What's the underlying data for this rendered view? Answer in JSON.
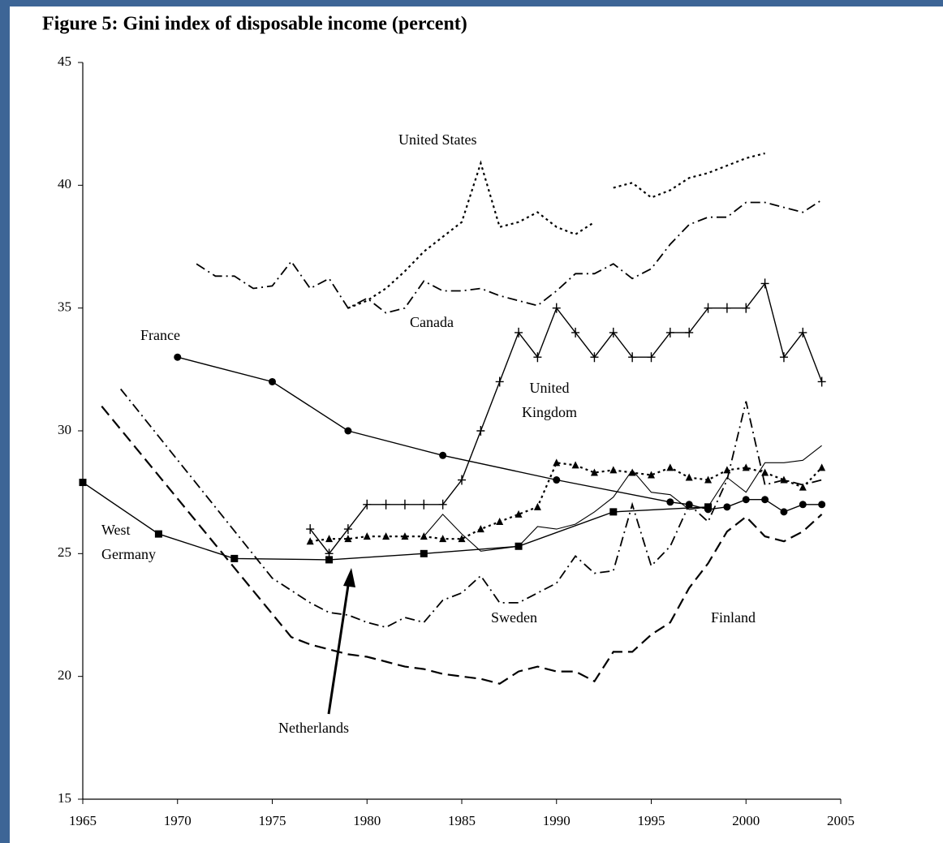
{
  "chart_data": {
    "type": "line",
    "title": "Figure 5: Gini index of disposable income (percent)",
    "xlim": [
      1965,
      2005
    ],
    "xticks": [
      1965,
      1970,
      1975,
      1980,
      1985,
      1990,
      1995,
      2000,
      2005
    ],
    "ylim": [
      15,
      45
    ],
    "yticks": [
      15,
      20,
      25,
      30,
      35,
      40,
      45
    ],
    "grid": false,
    "annotations": [
      "Netherlands"
    ],
    "series": [
      {
        "name": "United States",
        "color": "#000000",
        "dash": "dotted",
        "marker": "none",
        "x": [
          1979,
          1980,
          1981,
          1982,
          1983,
          1984,
          1985,
          1986,
          1987,
          1988,
          1989,
          1990,
          1991,
          1992,
          1992.5,
          1993,
          1994,
          1995,
          1996,
          1997,
          1998,
          1999,
          2000,
          2001
        ],
        "values": [
          35.0,
          35.3,
          35.8,
          36.5,
          37.3,
          37.9,
          38.5,
          40.9,
          38.3,
          38.5,
          38.9,
          38.3,
          38.0,
          38.5,
          null,
          39.9,
          40.1,
          39.5,
          39.8,
          40.3,
          40.5,
          40.8,
          41.1,
          41.3
        ]
      },
      {
        "name": "Canada",
        "color": "#000000",
        "dash": "dashdot",
        "marker": "none",
        "x": [
          1971,
          1972,
          1973,
          1974,
          1975,
          1976,
          1977,
          1978,
          1979,
          1980,
          1981,
          1982,
          1983,
          1984,
          1985,
          1986,
          1987,
          1988,
          1989,
          1990,
          1991,
          1992,
          1993,
          1994,
          1995,
          1996,
          1997,
          1998,
          1999,
          2000,
          2001,
          2002,
          2003,
          2004
        ],
        "values": [
          36.8,
          36.3,
          36.3,
          35.8,
          35.9,
          36.9,
          35.8,
          36.2,
          35.0,
          35.4,
          34.8,
          35.0,
          36.1,
          35.7,
          35.7,
          35.8,
          35.5,
          35.3,
          35.1,
          35.7,
          36.4,
          36.4,
          36.8,
          36.2,
          36.6,
          37.6,
          38.4,
          38.7,
          38.7,
          39.3,
          39.3,
          39.1,
          38.9,
          39.4
        ]
      },
      {
        "name": "France",
        "color": "#000000",
        "dash": "solid",
        "marker": "circle",
        "x": [
          1970,
          1975,
          1979,
          1984,
          1990,
          1996,
          1997,
          1998,
          1999,
          2000,
          2001,
          2002,
          2003,
          2004
        ],
        "values": [
          33,
          32,
          30,
          29,
          28,
          27.1,
          27,
          26.8,
          26.9,
          27.2,
          27.2,
          26.7,
          27,
          27
        ]
      },
      {
        "name": "United Kingdom",
        "color": "#000000",
        "dash": "solid",
        "marker": "plus",
        "x": [
          1977,
          1978,
          1979,
          1980,
          1981,
          1982,
          1983,
          1984,
          1985,
          1986,
          1987,
          1988,
          1989,
          1990,
          1991,
          1992,
          1993,
          1994,
          1995,
          1996,
          1997,
          1998,
          1999,
          2000,
          2001,
          2002,
          2003,
          2004
        ],
        "values": [
          26,
          25,
          26,
          27,
          27,
          27,
          27,
          27,
          28,
          30,
          32,
          34,
          33,
          35,
          34,
          33,
          34,
          33,
          33,
          34,
          34,
          35,
          35,
          35,
          36,
          33,
          34,
          32
        ]
      },
      {
        "name": "West Germany",
        "color": "#000000",
        "dash": "solid",
        "marker": "square",
        "x": [
          1965,
          1969,
          1973,
          1978,
          1983,
          1988,
          1993,
          1998
        ],
        "values": [
          27.9,
          25.8,
          24.8,
          24.75,
          25.0,
          25.3,
          26.7,
          26.9
        ]
      },
      {
        "color": "#000000",
        "dash": "dotted",
        "marker": "triangle",
        "x": [
          1977,
          1978,
          1979,
          1980,
          1981,
          1982,
          1983,
          1984,
          1985,
          1986,
          1987,
          1988,
          1989,
          1990,
          1991,
          1992,
          1993,
          1994,
          1995,
          1996,
          1997,
          1998,
          1999,
          2000,
          2001,
          2002,
          2003,
          2004
        ],
        "values": [
          25.5,
          25.6,
          25.6,
          25.7,
          25.7,
          25.7,
          25.7,
          25.6,
          25.6,
          26.0,
          26.3,
          26.6,
          26.9,
          28.7,
          28.6,
          28.3,
          28.4,
          28.3,
          28.2,
          28.5,
          28.1,
          28.0,
          28.4,
          28.5,
          28.3,
          28.0,
          27.7,
          28.5
        ]
      },
      {
        "color": "#000000",
        "dash": "thin",
        "marker": "none",
        "x": [
          1983,
          1984,
          1985,
          1986,
          1987,
          1988,
          1989,
          1990,
          1991,
          1992,
          1993,
          1994,
          1995,
          1996,
          1997,
          1998,
          1999,
          2000,
          2001,
          2002,
          2003,
          2004
        ],
        "values": [
          25.7,
          26.6,
          25.8,
          25.1,
          25.2,
          25.3,
          26.1,
          26.0,
          26.2,
          26.7,
          27.3,
          28.4,
          27.5,
          27.4,
          26.8,
          26.9,
          28.1,
          27.5,
          28.7,
          28.7,
          28.8,
          29.4
        ]
      },
      {
        "name": "Sweden",
        "color": "#000000",
        "dash": "dashdot",
        "marker": "none",
        "x": [
          1967,
          1975,
          1976,
          1977,
          1978,
          1979,
          1980,
          1981,
          1982,
          1983,
          1984,
          1985,
          1986,
          1987,
          1988,
          1989,
          1990,
          1991,
          1992,
          1993,
          1994,
          1995,
          1996,
          1997,
          1998,
          1999,
          2000,
          2001,
          2002,
          2003,
          2004
        ],
        "values": [
          31.7,
          24.0,
          23.5,
          23.0,
          22.6,
          22.5,
          22.2,
          22.0,
          22.4,
          22.2,
          23.1,
          23.4,
          24.1,
          23.0,
          23.0,
          23.4,
          23.8,
          24.9,
          24.2,
          24.3,
          27.0,
          24.5,
          25.3,
          27.0,
          26.3,
          28.0,
          31.2,
          27.8,
          28.0,
          27.8,
          28.0
        ]
      },
      {
        "name": "Finland",
        "color": "#000000",
        "dash": "dashed",
        "marker": "none",
        "x": [
          1966,
          1976,
          1977,
          1978,
          1979,
          1980,
          1981,
          1982,
          1983,
          1984,
          1985,
          1986,
          1987,
          1988,
          1989,
          1990,
          1991,
          1992,
          1993,
          1994,
          1995,
          1996,
          1997,
          1998,
          1999,
          2000,
          2001,
          2002,
          2003,
          2004
        ],
        "values": [
          31.0,
          21.6,
          21.3,
          21.1,
          20.9,
          20.8,
          20.6,
          20.4,
          20.3,
          20.1,
          20.0,
          19.9,
          19.7,
          20.2,
          20.4,
          20.2,
          20.2,
          19.8,
          21.0,
          21.0,
          21.7,
          22.2,
          23.6,
          24.6,
          25.9,
          26.5,
          25.7,
          25.5,
          25.9,
          26.6
        ]
      }
    ]
  }
}
